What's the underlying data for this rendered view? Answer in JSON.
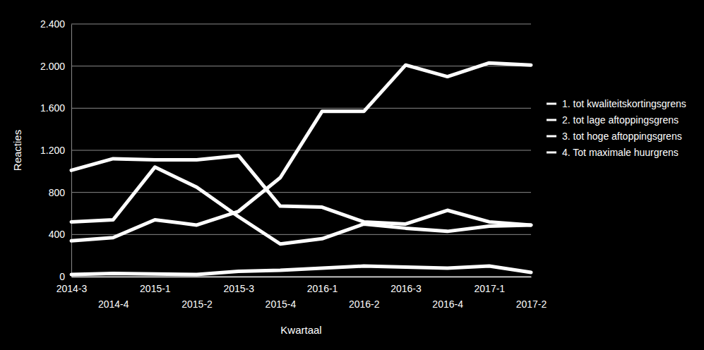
{
  "chart_data": {
    "type": "line",
    "x_label": "Kwartaal",
    "y_label": "Reacties",
    "categories": [
      "2014-3",
      "2014-4",
      "2015-1",
      "2015-2",
      "2015-3",
      "2015-4",
      "2016-1",
      "2016-2",
      "2016-3",
      "2016-4",
      "2017-1",
      "2017-2"
    ],
    "series": [
      {
        "name": "1. tot kwaliteitskortingsgrens",
        "color": "#ffffff",
        "values": [
          1010,
          1120,
          1110,
          1110,
          1150,
          670,
          660,
          520,
          500,
          630,
          520,
          490
        ]
      },
      {
        "name": "2. tot lage aftoppingsgrens",
        "color": "#ffffff",
        "values": [
          340,
          370,
          540,
          490,
          620,
          940,
          1570,
          1570,
          2010,
          1900,
          2030,
          2010
        ]
      },
      {
        "name": "3. tot hoge aftoppingsgrens",
        "color": "#ffffff",
        "values": [
          520,
          540,
          1040,
          850,
          570,
          310,
          360,
          500,
          460,
          430,
          480,
          490
        ]
      },
      {
        "name": "4. Tot maximale huurgrens",
        "color": "#ffffff",
        "values": [
          20,
          30,
          25,
          20,
          50,
          60,
          80,
          100,
          90,
          80,
          100,
          40
        ]
      }
    ],
    "ylim": [
      0,
      2400
    ],
    "yticks": [
      0,
      400,
      800,
      {
        "value": 1200,
        "label": "1.200"
      },
      {
        "value": 1600,
        "label": "1.600"
      },
      {
        "value": 2000,
        "label": "2.000"
      },
      {
        "value": 2400,
        "label": "2.400"
      }
    ],
    "grid": true,
    "legend": "right"
  }
}
